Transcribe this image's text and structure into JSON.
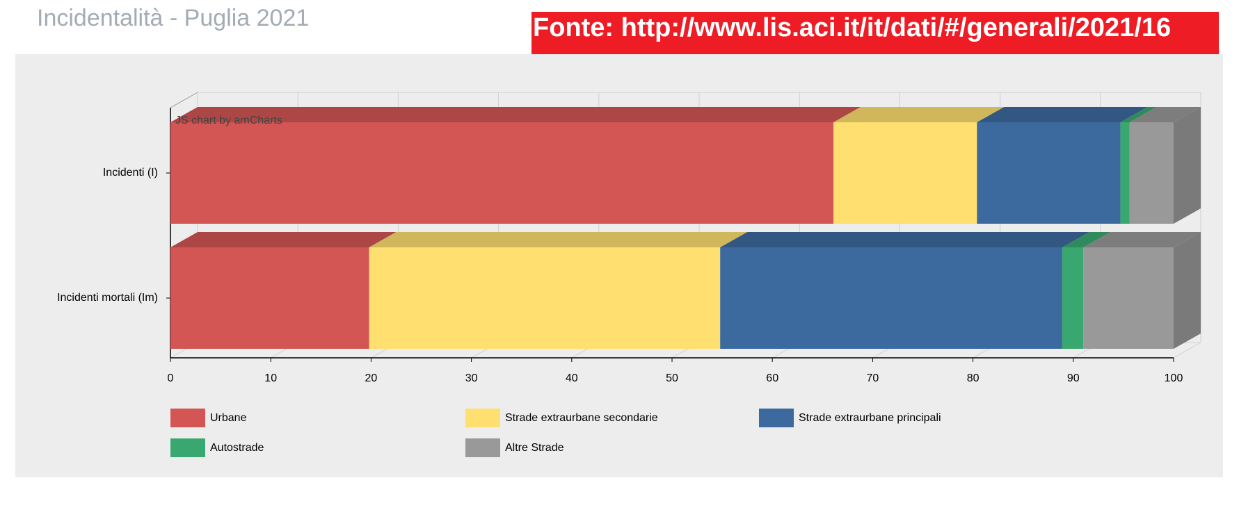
{
  "header": {
    "title": "Incidentalità - Puglia 2021",
    "source": "Fonte: http://www.lis.aci.it/it/dati/#/generali/2021/16"
  },
  "chart_data": {
    "type": "stacked-bar-3d",
    "orientation": "horizontal",
    "credit": "JS chart by amCharts",
    "categories": [
      "Incidenti (I)",
      "Incidenti mortali (Im)"
    ],
    "series": [
      {
        "name": "Urbane",
        "color": "#d35654",
        "values": [
          66.1,
          19.8
        ]
      },
      {
        "name": "Strade extraurbane secondarie",
        "color": "#ffdf6f",
        "values": [
          14.3,
          35.0
        ]
      },
      {
        "name": "Strade extraurbane principali",
        "color": "#3d6a9e",
        "values": [
          14.3,
          34.1
        ]
      },
      {
        "name": "Autostrade",
        "color": "#39a870",
        "values": [
          0.9,
          2.1
        ]
      },
      {
        "name": "Altre Strade",
        "color": "#999999",
        "values": [
          4.4,
          9.0
        ]
      }
    ],
    "xlim": [
      0,
      100
    ],
    "xticks": [
      0,
      10,
      20,
      30,
      40,
      50,
      60,
      70,
      80,
      90,
      100
    ],
    "grid": true
  }
}
